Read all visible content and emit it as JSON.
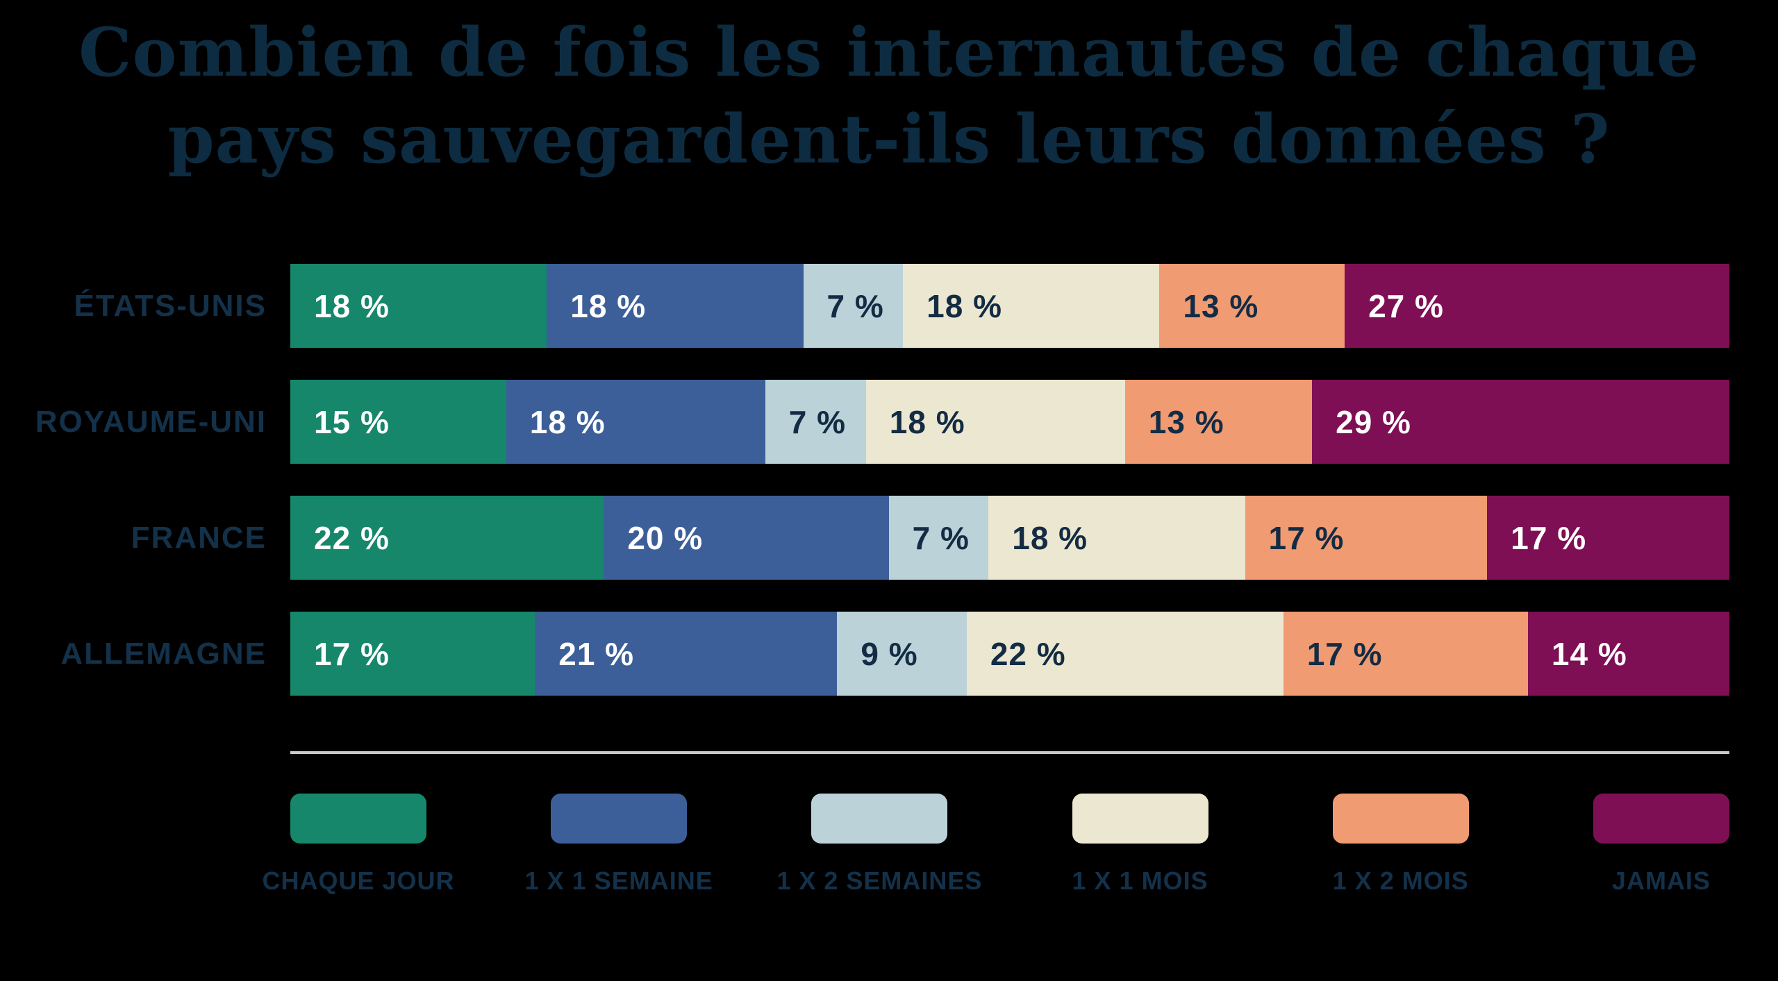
{
  "title_lines": [
    "Combien de fois les internautes de chaque",
    "pays sauvegardent-ils leurs données ?"
  ],
  "colors": {
    "background": "#000000",
    "title": "#0d2c41",
    "label": "#14314a",
    "value_dark": "#132c44",
    "value_light": "#ffffff",
    "separator": "#c9cbca"
  },
  "chart_data": {
    "type": "bar",
    "orientation": "horizontal",
    "stacked": true,
    "unit": "%",
    "title": "Combien de fois les internautes de chaque pays sauvegardent-ils leurs données ?",
    "categories": [
      "ÉTATS-UNIS",
      "ROYAUME-UNI",
      "FRANCE",
      "ALLEMAGNE"
    ],
    "series": [
      {
        "name": "CHAQUE JOUR",
        "color": "#16876b",
        "text_on": "light",
        "values": [
          18,
          15,
          22,
          17
        ]
      },
      {
        "name": "1 X 1 SEMAINE",
        "color": "#3d5f99",
        "text_on": "light",
        "values": [
          18,
          18,
          20,
          21
        ]
      },
      {
        "name": "1 X 2 SEMAINES",
        "color": "#bad2d8",
        "text_on": "dark",
        "values": [
          7,
          7,
          7,
          9
        ]
      },
      {
        "name": "1 X 1 MOIS",
        "color": "#ece7d0",
        "text_on": "dark",
        "values": [
          18,
          18,
          18,
          22
        ]
      },
      {
        "name": "1 X 2 MOIS",
        "color": "#f19b72",
        "text_on": "dark",
        "values": [
          13,
          13,
          17,
          17
        ]
      },
      {
        "name": "JAMAIS",
        "color": "#7f0f54",
        "text_on": "light",
        "values": [
          27,
          29,
          17,
          14
        ]
      }
    ],
    "value_label_format": "{v} %",
    "legend_position": "bottom",
    "grid": false
  }
}
